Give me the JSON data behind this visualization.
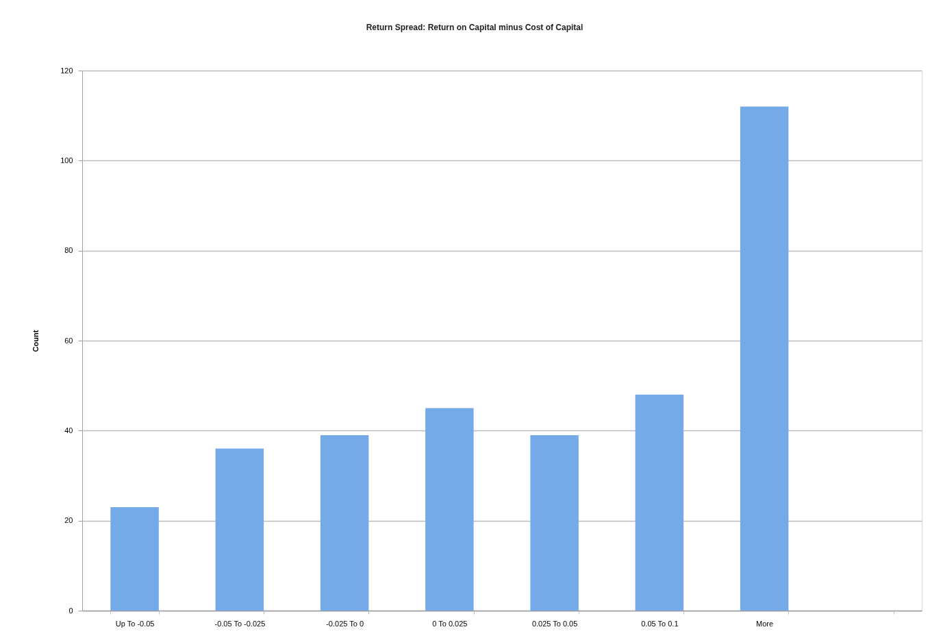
{
  "chart_data": {
    "type": "bar",
    "title": "Return Spread: Return on Capital minus Cost of Capital",
    "ylabel": "Count",
    "categories": [
      "Up To -0.05",
      "-0.05 To -0.025",
      "-0.025 To 0",
      "0 To 0.025",
      "0.025 To 0.05",
      "0.05 To 0.1",
      "More",
      null
    ],
    "values": [
      23,
      36,
      39,
      45,
      39,
      48,
      112,
      null
    ],
    "color": "#75aae8",
    "ylim": [
      0,
      120
    ],
    "yticks": [
      0,
      20,
      40,
      60,
      80,
      100,
      120
    ],
    "grid": "y"
  }
}
